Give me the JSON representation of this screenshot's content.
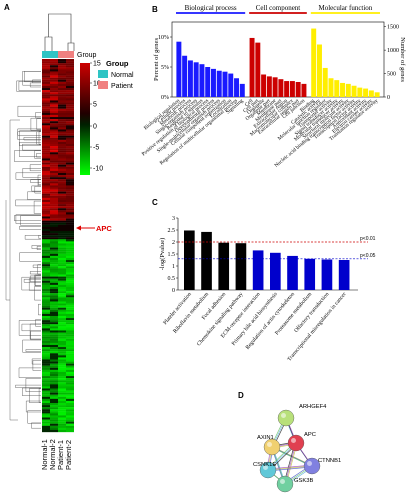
{
  "panels": {
    "A": "A",
    "B": "B",
    "C": "C",
    "D": "D"
  },
  "heatmap": {
    "group_label": "Group",
    "legend_title": "Group",
    "legend_items": [
      {
        "label": "Normal",
        "color": "#2ec4c4"
      },
      {
        "label": "Patient",
        "color": "#f08080"
      }
    ],
    "scale_ticks": [
      "15",
      "10",
      "5",
      "0",
      "-5",
      "-10"
    ],
    "apc_label": "APC",
    "samples": [
      "Normal-1",
      "Normal-2",
      "Patient-1",
      "Patient-2"
    ],
    "colors": {
      "high": "#cc0000",
      "low": "#00ff00",
      "mid": "#000000"
    }
  },
  "chart_data": [
    {
      "panel": "B",
      "type": "bar",
      "groups": [
        {
          "name": "Biological process",
          "color": "#1a1aff",
          "values": [
            59,
            44,
            39,
            37,
            35,
            32,
            30,
            28,
            27,
            25,
            20,
            14
          ]
        },
        {
          "name": "Cell component",
          "color": "#cc0000",
          "values": [
            63,
            58,
            24,
            22,
            21,
            19,
            17,
            17,
            16,
            14
          ]
        },
        {
          "name": "Molecular function",
          "color": "#ffee00",
          "values": [
            73,
            56,
            31,
            20,
            18,
            15,
            14,
            12,
            10,
            9,
            7,
            5
          ]
        }
      ],
      "categories_bp": [
        "Biological regulation",
        "Cellular process",
        "Metabolic process",
        "Single-organism process",
        "Response to stimulus",
        "Positive regulation of biological process",
        "Developmental process",
        "Single-multicellular organism process",
        "Cellular component organization",
        "Localization",
        "Regulation of multicellular organismal process",
        "Signaling"
      ],
      "categories_cc": [
        "Cell",
        "Cell part",
        "Organelle",
        "Organelle part",
        "Membrane",
        "Membrane part",
        "Extracellular region",
        "Macromolecular complex",
        "Extracellular region part",
        "Cell junction"
      ],
      "categories_mf": [
        "Binding",
        "Catalytic activity",
        "Molecular function regulator",
        "Transporter activity",
        "Signal transducer activity",
        "Molecular transducer activity",
        "Structural molecule activity",
        "Nucleic acid binding transcription factor activity",
        "Transcription factor activity",
        "Antioxidant activity",
        "Electron carrier activity",
        "Translation regulator activity"
      ],
      "ylabel_left": "Percent of genes",
      "ylabel_right": "Number of genes",
      "yticks_left": [
        "0%",
        "5%",
        "10%"
      ],
      "yticks_right": [
        "0",
        "500",
        "1000",
        "1500"
      ],
      "ylim": [
        0,
        80
      ]
    },
    {
      "panel": "C",
      "type": "bar",
      "categories": [
        "Platelet activation",
        "Riboflavin metabolism",
        "Focal adhesion",
        "Chemokine signaling pathway",
        "ECM-receptor interaction",
        "Primary bile acid biosynthesis",
        "Regulation of actin cytoskeleton",
        "Proteasome metabolism",
        "Olfactory transduction",
        "Transcriptional misregulation in cancer"
      ],
      "values": [
        2.48,
        2.42,
        1.97,
        1.95,
        1.65,
        1.55,
        1.42,
        1.3,
        1.27,
        1.25
      ],
      "colors": [
        "#000000",
        "#000000",
        "#000000",
        "#000000",
        "#0000cc",
        "#0000cc",
        "#0000cc",
        "#0000cc",
        "#0000cc",
        "#0000cc"
      ],
      "ylabel": "-log(Pvalue)",
      "yticks": [
        "0",
        "0.5",
        "1",
        "1.5",
        "2",
        "2.5",
        "3"
      ],
      "ylim": [
        0,
        3
      ],
      "thresholds": [
        {
          "value": 2.0,
          "label": "p<0.01",
          "color": "#cc0000"
        },
        {
          "value": 1.3,
          "label": "p<0.05",
          "color": "#0000cc"
        }
      ]
    }
  ],
  "network": {
    "nodes": [
      {
        "name": "ARHGEF4",
        "color": "#b8e07a"
      },
      {
        "name": "AXIN1",
        "color": "#f0d070"
      },
      {
        "name": "APC",
        "color": "#e04050"
      },
      {
        "name": "CSNK1E",
        "color": "#60c8d8"
      },
      {
        "name": "CTNNB1",
        "color": "#8080e0"
      },
      {
        "name": "GSK3B",
        "color": "#70d0a0"
      }
    ]
  }
}
